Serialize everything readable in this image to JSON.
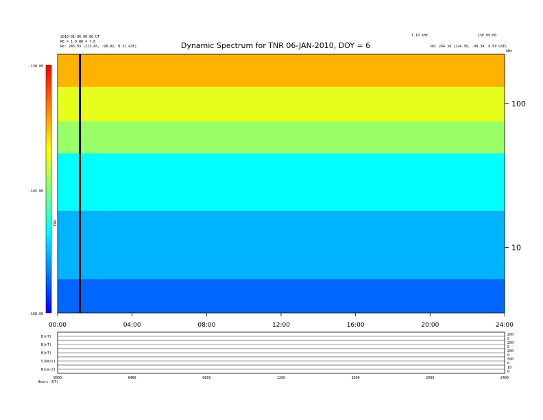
{
  "chart_data": {
    "type": "heatmap",
    "title": "Dynamic Spectrum for TNR 06-JAN-2010, DOY = 6",
    "x_ticks": [
      "00:00",
      "04:00",
      "08:00",
      "12:00",
      "16:00",
      "20:00",
      "24:00"
    ],
    "x_range_hours": [
      0,
      24
    ],
    "y_scale": "log",
    "y_ticks": [
      "100",
      "10"
    ],
    "y_unit": "kHz",
    "y_range_khz": [
      3.5,
      220
    ],
    "colorbar": {
      "label": "TNR",
      "ticks": [
        "-130.00",
        "-145.00",
        "-160.00"
      ],
      "range": [
        -160,
        -130
      ],
      "colors": [
        "#0000ff",
        "#00ffff",
        "#ffff00",
        "#ff0000"
      ]
    },
    "data_gap_hour": 1.2,
    "panel_bands": [
      {
        "freq_khz": [
          130,
          220
        ],
        "level": -137
      },
      {
        "freq_khz": [
          75,
          130
        ],
        "level": -141
      },
      {
        "freq_khz": [
          45,
          75
        ],
        "level": -144
      },
      {
        "freq_khz": [
          18,
          45
        ],
        "level": -150
      },
      {
        "freq_khz": [
          6,
          18
        ],
        "level": -153
      },
      {
        "freq_khz": [
          3.5,
          6
        ],
        "level": -156
      }
    ],
    "top_left_header": [
      "2010-01-06 00:00 UT",
      "RE = 1.8   RR = 7.8",
      "Re:  245.03 (223.45, -98.82, 8.31 GSE)"
    ],
    "top_right_header": [
      "1.10 kHz",
      "LSE 09:00",
      "Re:  244.34 (224.38, -98.34, 8.69 GSE)"
    ],
    "sub_panels": {
      "row_labels": [
        "B(nT)",
        "B(nT)",
        "B(nT)",
        "V(km/s)",
        "N(cm-3)"
      ],
      "right_scale_labels": [
        "200",
        "0",
        "200",
        "0",
        "200",
        "0",
        "500",
        "0",
        "10",
        "0"
      ],
      "bottom_ticks": [
        "0000",
        "0400",
        "0800",
        "1200",
        "1600",
        "2000",
        "2400"
      ],
      "footer_label": "Hours (UT)"
    }
  }
}
